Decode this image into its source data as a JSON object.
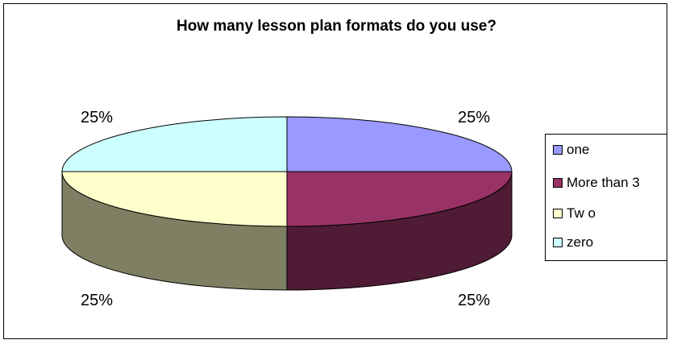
{
  "chart_data": {
    "type": "pie",
    "title": "How many lesson plan formats do you use?",
    "categories": [
      "one",
      "More than 3",
      "Tw o",
      "zero"
    ],
    "values": [
      25,
      25,
      25,
      25
    ],
    "labels": [
      "25%",
      "25%",
      "25%",
      "25%"
    ],
    "colors": {
      "top": [
        "#9999ff",
        "#993366",
        "#ffffcc",
        "#ccffff"
      ],
      "side": [
        "#3c3c64",
        "#4f1b35",
        "#7f7f63",
        "#6a8585"
      ]
    },
    "legend_position": "right",
    "three_d": true
  }
}
